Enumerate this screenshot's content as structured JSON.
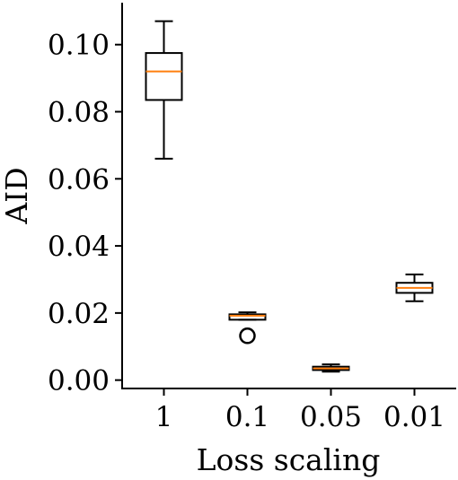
{
  "chart_data": {
    "type": "box",
    "xlabel": "Loss scaling",
    "ylabel": "AID",
    "categories": [
      "1",
      "0.1",
      "0.05",
      "0.01"
    ],
    "ylim": [
      -0.0025,
      0.1125
    ],
    "yticks": [
      0.0,
      0.02,
      0.04,
      0.06,
      0.08,
      0.1
    ],
    "ytick_labels": [
      "0.00",
      "0.02",
      "0.04",
      "0.06",
      "0.08",
      "0.10"
    ],
    "grid": false,
    "boxes": [
      {
        "category": "1",
        "whisker_low": 0.066,
        "q1": 0.0835,
        "median": 0.092,
        "q3": 0.0975,
        "whisker_high": 0.107,
        "outliers": []
      },
      {
        "category": "0.1",
        "whisker_low": 0.018,
        "q1": 0.018,
        "median": 0.0192,
        "q3": 0.0196,
        "whisker_high": 0.0202,
        "outliers": [
          0.0132
        ]
      },
      {
        "category": "0.05",
        "whisker_low": 0.0025,
        "q1": 0.003,
        "median": 0.0035,
        "q3": 0.004,
        "whisker_high": 0.0047,
        "outliers": []
      },
      {
        "category": "0.01",
        "whisker_low": 0.0235,
        "q1": 0.026,
        "median": 0.0275,
        "q3": 0.029,
        "whisker_high": 0.0315,
        "outliers": []
      }
    ],
    "colors": {
      "box": "#000000",
      "median": "#ff7f0e"
    }
  }
}
